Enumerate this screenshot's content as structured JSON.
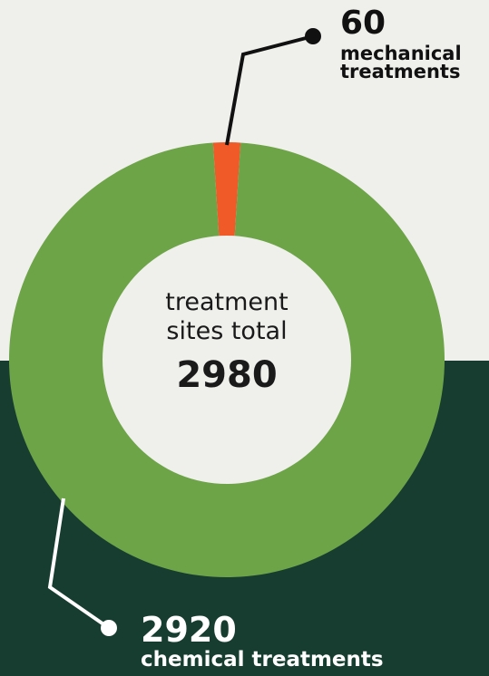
{
  "chart_data": {
    "type": "pie",
    "donut": true,
    "categories": [
      "mechanical treatments",
      "chemical treatments"
    ],
    "values": [
      60,
      2920
    ],
    "colors": [
      "#f05a28",
      "#6da447"
    ],
    "center_label": "treatment sites total",
    "total": 2980
  }
}
